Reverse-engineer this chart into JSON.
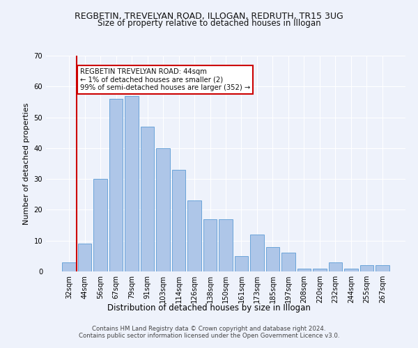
{
  "title1": "REGBETIN, TREVELYAN ROAD, ILLOGAN, REDRUTH, TR15 3UG",
  "title2": "Size of property relative to detached houses in Illogan",
  "xlabel": "Distribution of detached houses by size in Illogan",
  "ylabel": "Number of detached properties",
  "categories": [
    "32sqm",
    "44sqm",
    "56sqm",
    "67sqm",
    "79sqm",
    "91sqm",
    "103sqm",
    "114sqm",
    "126sqm",
    "138sqm",
    "150sqm",
    "161sqm",
    "173sqm",
    "185sqm",
    "197sqm",
    "208sqm",
    "220sqm",
    "232sqm",
    "244sqm",
    "255sqm",
    "267sqm"
  ],
  "values": [
    3,
    9,
    30,
    56,
    57,
    47,
    40,
    33,
    23,
    17,
    17,
    5,
    12,
    8,
    6,
    1,
    1,
    3,
    1,
    2,
    2
  ],
  "bar_color": "#aec6e8",
  "bar_edge_color": "#5b9bd5",
  "highlight_bar_index": 1,
  "highlight_color": "#cc0000",
  "background_color": "#eef2fb",
  "grid_color": "#ffffff",
  "annotation_text": "REGBETIN TREVELYAN ROAD: 44sqm\n← 1% of detached houses are smaller (2)\n99% of semi-detached houses are larger (352) →",
  "annotation_box_color": "#ffffff",
  "annotation_box_edge_color": "#cc0000",
  "footer1": "Contains HM Land Registry data © Crown copyright and database right 2024.",
  "footer2": "Contains public sector information licensed under the Open Government Licence v3.0.",
  "ylim": [
    0,
    70
  ],
  "yticks": [
    0,
    10,
    20,
    30,
    40,
    50,
    60,
    70
  ]
}
